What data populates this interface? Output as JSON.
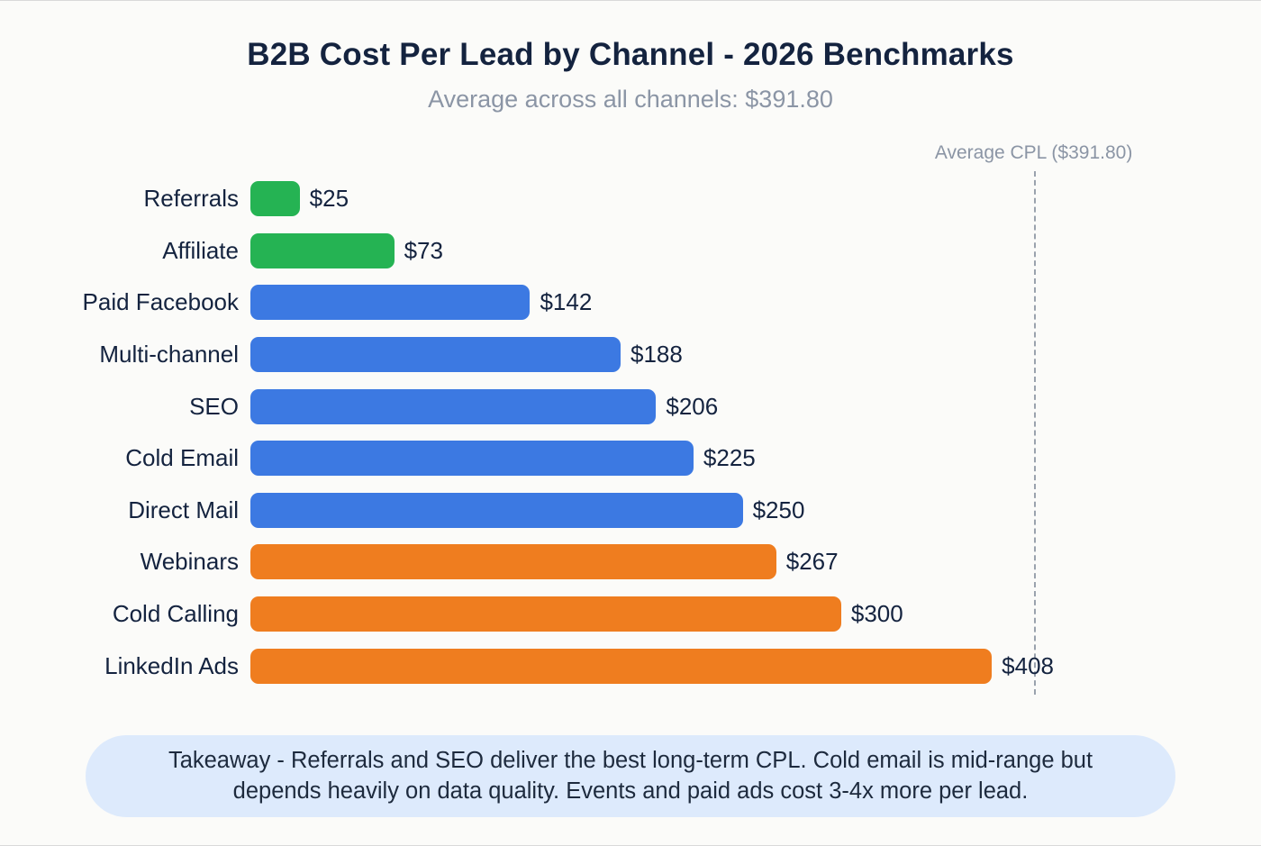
{
  "chart_data": {
    "type": "bar",
    "orientation": "horizontal",
    "title": "B2B Cost Per Lead by Channel - 2026 Benchmarks",
    "subtitle": "Average across all channels: $391.80",
    "categories": [
      "Referrals",
      "Affiliate",
      "Paid Facebook",
      "Multi-channel",
      "SEO",
      "Cold Email",
      "Direct Mail",
      "Webinars",
      "Cold Calling",
      "LinkedIn Ads"
    ],
    "values": [
      25,
      73,
      142,
      188,
      206,
      225,
      250,
      267,
      300,
      408
    ],
    "value_labels": [
      "$25",
      "$73",
      "$142",
      "$188",
      "$206",
      "$225",
      "$250",
      "$267",
      "$300",
      "$408"
    ],
    "bar_colors": [
      "#25b353",
      "#25b353",
      "#3c79e2",
      "#3c79e2",
      "#3c79e2",
      "#3c79e2",
      "#3c79e2",
      "#ef7d1f",
      "#ef7d1f",
      "#ef7d1f"
    ],
    "xlim": [
      0,
      408
    ],
    "reference_line": {
      "value": 391.8,
      "label": "Average CPL ($391.80)"
    },
    "grid": false,
    "legend": false,
    "xlabel": "",
    "ylabel": ""
  },
  "takeaway": {
    "text": "Takeaway - Referrals and SEO deliver the best long-term CPL. Cold email is mid-range but depends heavily on data quality. Events and paid ads cost 3-4x more per lead."
  },
  "colors": {
    "background": "#fbfbf9",
    "title_text": "#14233f",
    "subtitle_text": "#8b95a5",
    "reference_line": "#9aa2ad",
    "green": "#25b353",
    "blue": "#3c79e2",
    "orange": "#ef7d1f",
    "takeaway_bg": "#ddeafc"
  }
}
